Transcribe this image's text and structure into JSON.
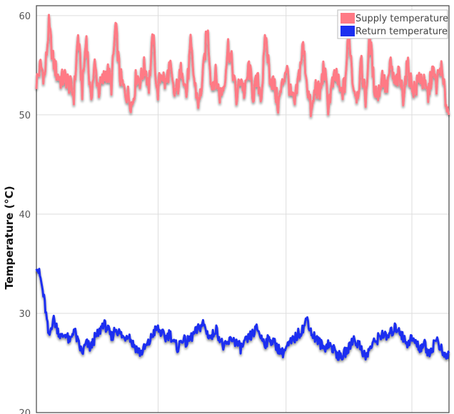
{
  "chart_data": {
    "type": "line",
    "title": "",
    "xlabel": "",
    "ylabel": "Temperature (°C)",
    "ylim": [
      20,
      61
    ],
    "yticks": [
      20,
      30,
      40,
      50,
      60
    ],
    "xlim": [
      0,
      100
    ],
    "grid": true,
    "legend_position": "top-right",
    "series": [
      {
        "name": "Supply temperature",
        "color": "#ff7a85",
        "values": [
          53.3,
          55.0,
          53.8,
          59.0,
          55.5,
          54.0,
          53.5,
          53.8,
          53.0,
          52.0,
          58.0,
          52.5,
          58.0,
          51.5,
          55.0,
          52.5,
          53.5,
          54.5,
          53.0,
          59.0,
          54.0,
          52.5,
          52.0,
          51.0,
          54.0,
          53.5,
          55.0,
          53.0,
          58.0,
          52.0,
          54.5,
          53.0,
          55.0,
          52.0,
          53.0,
          55.0,
          52.0,
          57.0,
          53.0,
          51.0,
          54.0,
          59.0,
          53.0,
          54.0,
          52.0,
          53.0,
          57.0,
          55.0,
          51.5,
          54.0,
          52.0,
          55.0,
          52.0,
          53.5,
          52.0,
          58.0,
          54.0,
          53.0,
          51.0,
          53.0,
          55.0,
          52.0,
          51.0,
          54.0,
          57.0,
          53.0,
          50.0,
          53.0,
          52.0,
          55.0,
          51.0,
          53.0,
          54.0,
          52.0,
          53.0,
          58.5,
          53.0,
          52.0,
          55.0,
          51.5,
          58.0,
          53.0,
          52.0,
          54.0,
          52.5,
          55.0,
          53.0,
          54.0,
          52.0,
          55.0,
          53.0,
          52.5,
          54.0,
          53.0,
          52.0,
          54.5,
          53.0,
          55.0,
          52.0,
          50.0
        ]
      },
      {
        "name": "Return temperature",
        "color": "#1c2ff0",
        "values": [
          35.0,
          33.5,
          31.0,
          27.5,
          29.5,
          28.5,
          27.5,
          28.0,
          27.0,
          28.5,
          27.0,
          26.0,
          27.0,
          26.5,
          27.5,
          28.0,
          29.0,
          28.5,
          27.5,
          28.5,
          28.0,
          27.5,
          28.0,
          27.0,
          26.5,
          26.0,
          26.5,
          27.0,
          28.0,
          28.5,
          28.0,
          27.5,
          28.0,
          27.0,
          26.5,
          27.5,
          27.0,
          27.5,
          28.0,
          28.5,
          29.0,
          28.0,
          27.5,
          28.5,
          27.5,
          26.5,
          27.0,
          27.5,
          27.0,
          26.5,
          27.0,
          27.5,
          28.0,
          28.5,
          27.5,
          27.0,
          27.5,
          27.0,
          26.5,
          26.0,
          26.5,
          27.0,
          27.5,
          28.0,
          28.5,
          29.5,
          28.0,
          27.5,
          27.0,
          26.5,
          27.0,
          26.5,
          26.0,
          25.5,
          26.0,
          26.5,
          27.5,
          27.0,
          26.5,
          25.5,
          26.5,
          27.0,
          27.5,
          28.0,
          27.5,
          28.0,
          28.5,
          28.5,
          27.5,
          27.0,
          27.5,
          27.0,
          26.5,
          27.0,
          26.0,
          26.5,
          27.5,
          26.5,
          25.5,
          26.0
        ]
      }
    ]
  }
}
